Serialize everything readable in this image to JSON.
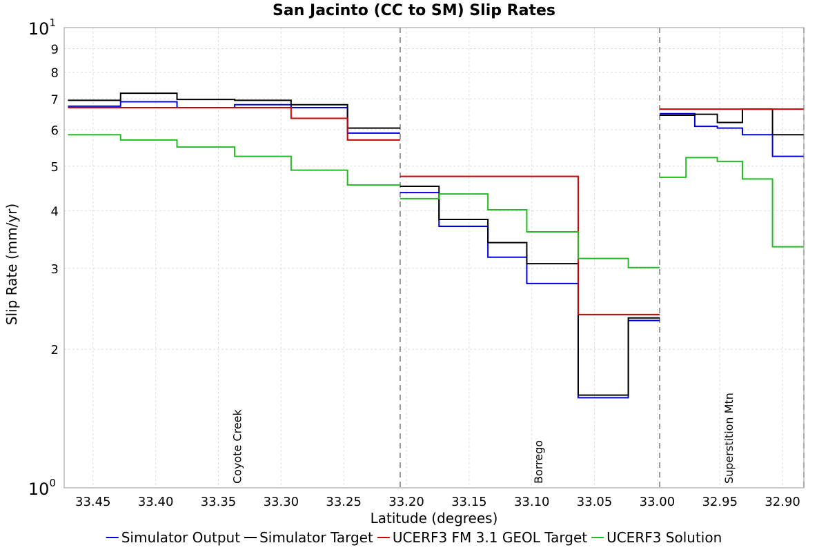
{
  "chart_data": {
    "type": "line",
    "title": "San Jacinto (CC to SM) Slip Rates",
    "xlabel": "Latitude (degrees)",
    "ylabel": "Slip Rate (mm/yr)",
    "x_reversed": true,
    "xlim": [
      33.473,
      32.883
    ],
    "ylim": [
      1,
      10
    ],
    "y_scale": "log",
    "grid": true,
    "legend_position": "bottom",
    "x_ticks": [
      "33.45",
      "33.40",
      "33.35",
      "33.30",
      "33.25",
      "33.20",
      "33.15",
      "33.10",
      "33.05",
      "33.00",
      "32.95",
      "32.90"
    ],
    "y_ticks": [
      {
        "value": 1,
        "label": "10",
        "sup": "0"
      },
      {
        "value": 2,
        "label": "2"
      },
      {
        "value": 3,
        "label": "3"
      },
      {
        "value": 4,
        "label": "4"
      },
      {
        "value": 5,
        "label": "5"
      },
      {
        "value": 6,
        "label": "6"
      },
      {
        "value": 7,
        "label": "7"
      },
      {
        "value": 8,
        "label": "8"
      },
      {
        "value": 9,
        "label": "9"
      },
      {
        "value": 10,
        "label": "10",
        "sup": "1"
      }
    ],
    "separators": [
      33.205,
      32.998,
      32.883
    ],
    "sections": [
      {
        "name": "Coyote Creek",
        "latitude": 33.335
      },
      {
        "name": "Borrego",
        "latitude": 33.095
      },
      {
        "name": "Superstition Mtn",
        "latitude": 32.943
      }
    ],
    "series": [
      {
        "name": "Simulator Output",
        "color": "#0000dd",
        "segments": [
          {
            "x": [
              33.47,
              33.428,
              33.383,
              33.337,
              33.292,
              33.247
            ],
            "y": [
              6.75,
              6.9,
              6.7,
              6.8,
              6.7,
              5.9
            ]
          },
          {
            "x": [
              33.205,
              33.174,
              33.135,
              33.104,
              33.063,
              33.023
            ],
            "y": [
              4.38,
              3.7,
              3.17,
              2.78,
              1.57,
              2.31
            ]
          },
          {
            "x": [
              32.998,
              32.97,
              32.952,
              32.932,
              32.908
            ],
            "y": [
              6.5,
              6.1,
              6.05,
              5.85,
              5.25
            ]
          }
        ],
        "end": [
          33.205,
          32.998,
          32.883
        ]
      },
      {
        "name": "Simulator Target",
        "color": "#000000",
        "segments": [
          {
            "x": [
              33.47,
              33.428,
              33.383,
              33.337,
              33.292,
              33.247
            ],
            "y": [
              6.95,
              7.2,
              6.98,
              6.95,
              6.8,
              6.05
            ]
          },
          {
            "x": [
              33.205,
              33.174,
              33.135,
              33.104,
              33.063,
              33.023
            ],
            "y": [
              4.52,
              3.83,
              3.41,
              3.07,
              1.59,
              2.34
            ]
          },
          {
            "x": [
              32.998,
              32.97,
              32.952,
              32.932,
              32.908
            ],
            "y": [
              6.45,
              6.48,
              6.22,
              6.65,
              5.85
            ]
          }
        ],
        "end": [
          33.205,
          32.998,
          32.883
        ]
      },
      {
        "name": "UCERF3 FM 3.1 GEOL Target",
        "color": "#cc0000",
        "segments": [
          {
            "x": [
              33.47,
              33.292,
              33.247
            ],
            "y": [
              6.7,
              6.35,
              5.7
            ]
          },
          {
            "x": [
              33.205,
              33.063
            ],
            "y": [
              4.75,
              2.38
            ]
          },
          {
            "x": [
              32.998
            ],
            "y": [
              6.65
            ]
          }
        ],
        "end": [
          33.205,
          32.998,
          32.883
        ]
      },
      {
        "name": "UCERF3 Solution",
        "color": "#22bb22",
        "segments": [
          {
            "x": [
              33.47,
              33.428,
              33.383,
              33.337,
              33.292,
              33.247
            ],
            "y": [
              5.85,
              5.7,
              5.5,
              5.25,
              4.9,
              4.55
            ]
          },
          {
            "x": [
              33.205,
              33.174,
              33.135,
              33.104,
              33.063,
              33.023
            ],
            "y": [
              4.25,
              4.35,
              4.02,
              3.6,
              3.15,
              3.01
            ]
          },
          {
            "x": [
              32.998,
              32.977,
              32.952,
              32.932,
              32.908
            ],
            "y": [
              4.73,
              5.22,
              5.12,
              4.69,
              3.34
            ]
          }
        ],
        "end": [
          33.205,
          32.998,
          32.883
        ]
      }
    ]
  }
}
